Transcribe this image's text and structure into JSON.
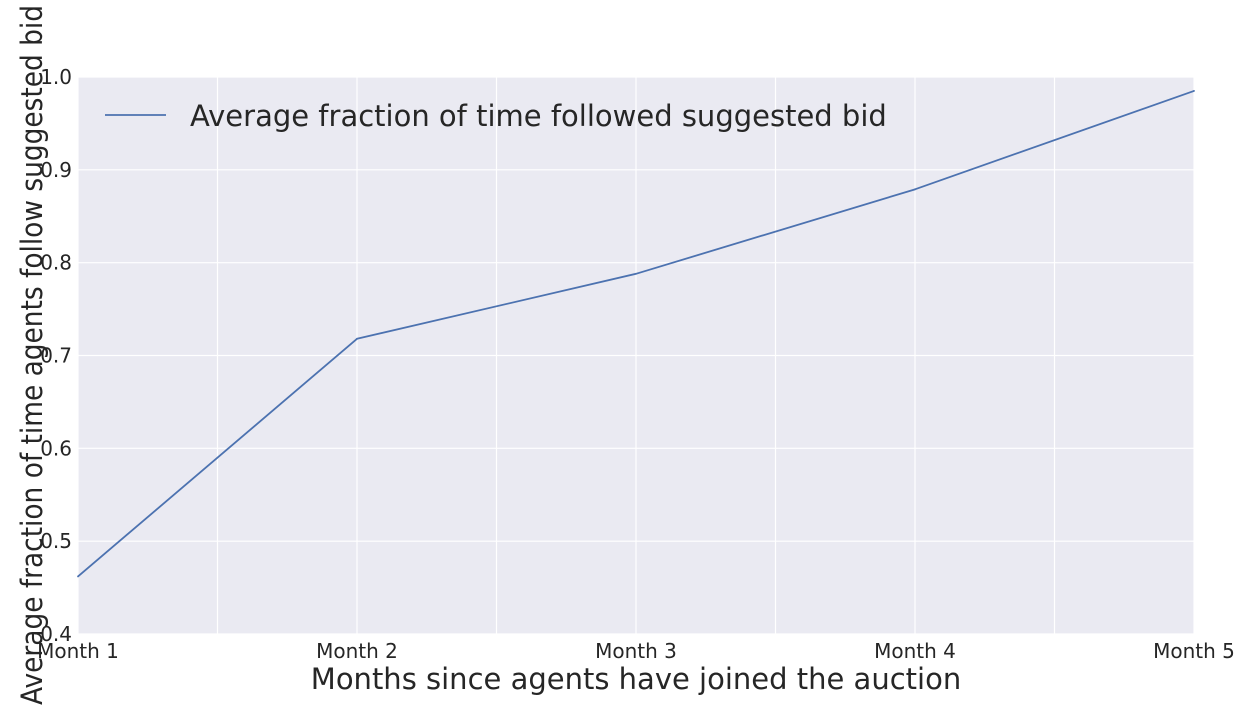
{
  "chart_data": {
    "type": "line",
    "title": "",
    "xlabel": "Months since agents have joined the auction",
    "ylabel": "Average fraction of time agents follow suggested bid",
    "categories": [
      "Month 1",
      "Month 2",
      "Month 3",
      "Month 4",
      "Month 5"
    ],
    "series": [
      {
        "name": "Average fraction of time followed suggested bid",
        "values": [
          0.462,
          0.718,
          0.788,
          0.879,
          0.985
        ],
        "color": "#4c72b0"
      }
    ],
    "ylim": [
      0.4,
      1.0
    ],
    "yticks": [
      0.4,
      0.5,
      0.6,
      0.7,
      0.8,
      0.9,
      1.0
    ],
    "ytick_labels": [
      "0.4",
      "0.5",
      "0.6",
      "0.7",
      "0.8",
      "0.9",
      "1.0"
    ],
    "grid": true,
    "legend_position": "top-left",
    "plot_background": "#eaeaf2",
    "grid_color": "#ffffff"
  }
}
